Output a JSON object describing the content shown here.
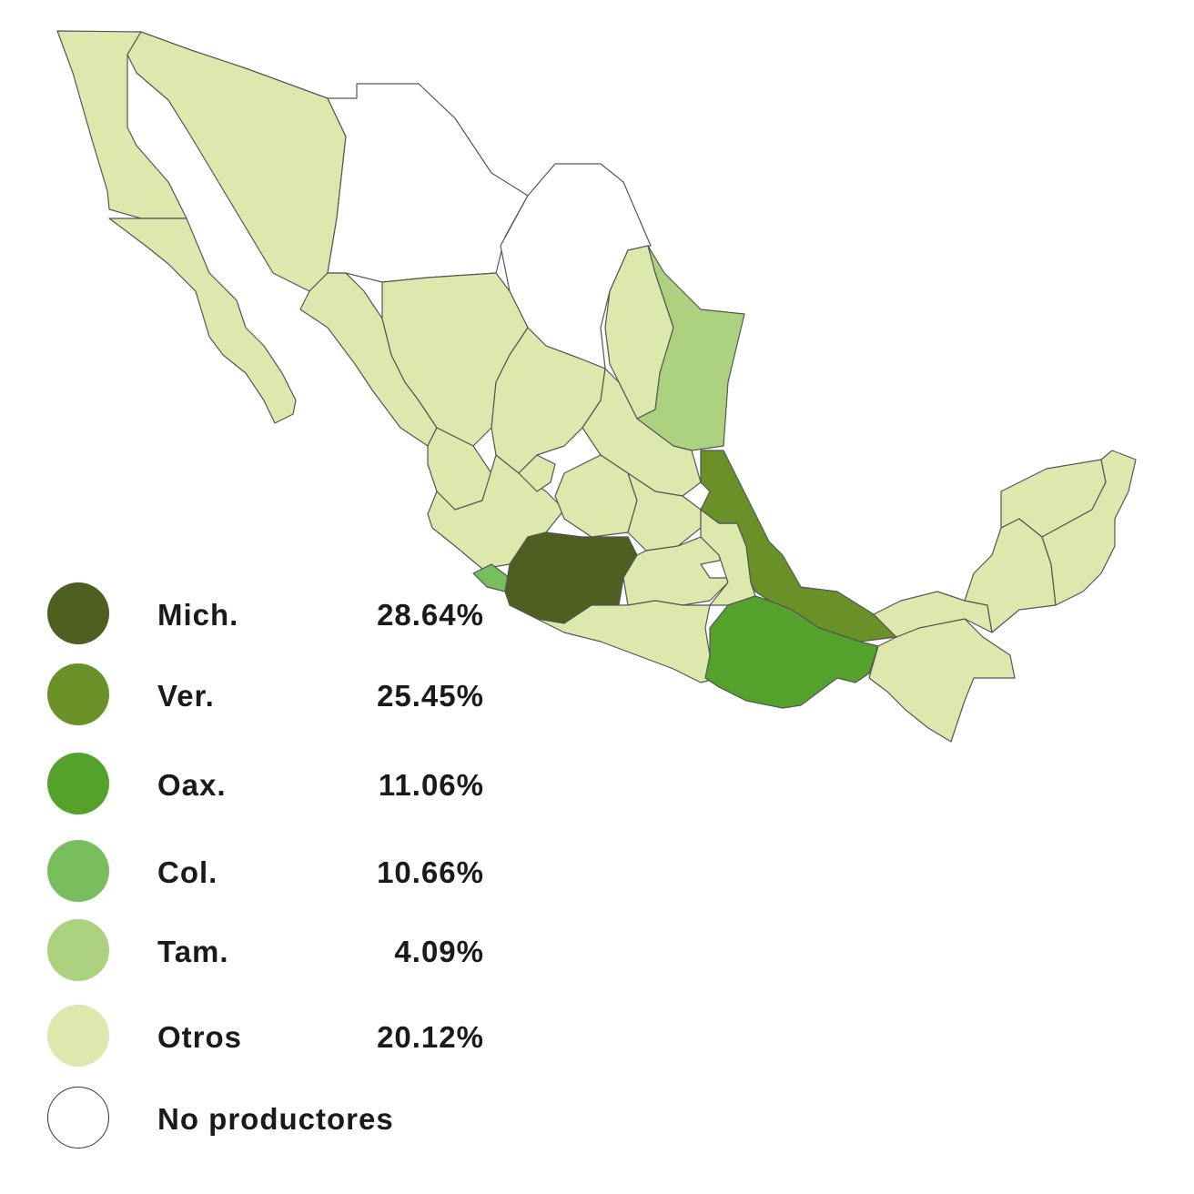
{
  "map": {
    "regions": [
      {
        "key": "otros",
        "color": "#dde9ac"
      },
      {
        "key": "no_productores",
        "color": "#ffffff"
      },
      {
        "key": "tam",
        "color": "#acd27f"
      },
      {
        "key": "ver",
        "color": "#6a9128"
      },
      {
        "key": "mich",
        "color": "#4f5f20"
      },
      {
        "key": "col",
        "color": "#78bd5e"
      },
      {
        "key": "oax",
        "color": "#54a22c"
      }
    ]
  },
  "legend": {
    "items": [
      {
        "key": "mich",
        "label": "Mich.",
        "value": "28.64%",
        "color": "#4f5f20"
      },
      {
        "key": "ver",
        "label": "Ver.",
        "value": "25.45%",
        "color": "#6a9128"
      },
      {
        "key": "oax",
        "label": "Oax.",
        "value": "11.06%",
        "color": "#54a22c"
      },
      {
        "key": "col",
        "label": "Col.",
        "value": "10.66%",
        "color": "#78bd5e"
      },
      {
        "key": "tam",
        "label": "Tam.",
        "value": "4.09%",
        "color": "#acd27f"
      },
      {
        "key": "otros",
        "label": "Otros",
        "value": "20.12%",
        "color": "#dde9ac"
      },
      {
        "key": "no_productores",
        "label": "No productores",
        "value": "",
        "color": "#ffffff"
      }
    ]
  }
}
